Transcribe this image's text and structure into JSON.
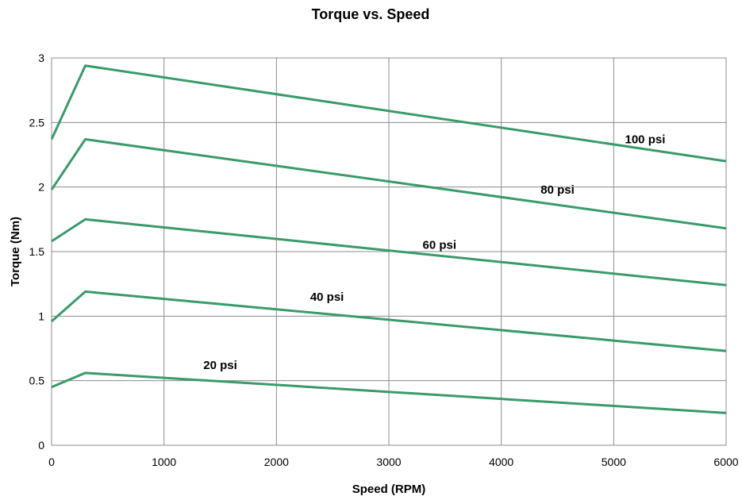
{
  "chart_data": {
    "type": "line",
    "title": "Torque vs. Speed",
    "xlabel": "Speed (RPM)",
    "ylabel": "Torque (Nm)",
    "xlim": [
      0,
      6000
    ],
    "ylim": [
      0,
      3
    ],
    "x_ticks": [
      0,
      1000,
      2000,
      3000,
      4000,
      5000,
      6000
    ],
    "y_ticks": [
      0,
      0.5,
      1,
      1.5,
      2,
      2.5,
      3
    ],
    "x_tick_labels": [
      "0",
      "1000",
      "2000",
      "3000",
      "4000",
      "5000",
      "6000"
    ],
    "y_tick_labels": [
      "0",
      "0.5",
      "1",
      "1.5",
      "2",
      "2.5",
      "3"
    ],
    "grid": true,
    "line_color": "#3a9a6a",
    "series": [
      {
        "name": "20 psi",
        "x": [
          0,
          300,
          6000
        ],
        "y": [
          0.45,
          0.56,
          0.25
        ],
        "label_at": [
          1350,
          0.59
        ]
      },
      {
        "name": "40 psi",
        "x": [
          0,
          300,
          6000
        ],
        "y": [
          0.96,
          1.19,
          0.73
        ],
        "label_at": [
          2300,
          1.12
        ]
      },
      {
        "name": "60 psi",
        "x": [
          0,
          300,
          6000
        ],
        "y": [
          1.58,
          1.75,
          1.24
        ],
        "label_at": [
          3300,
          1.52
        ]
      },
      {
        "name": "80 psi",
        "x": [
          0,
          300,
          6000
        ],
        "y": [
          1.98,
          2.37,
          1.68
        ],
        "label_at": [
          4350,
          1.95
        ]
      },
      {
        "name": "100 psi",
        "x": [
          0,
          300,
          6000
        ],
        "y": [
          2.37,
          2.94,
          2.2
        ],
        "label_at": [
          5100,
          2.34
        ]
      }
    ]
  }
}
